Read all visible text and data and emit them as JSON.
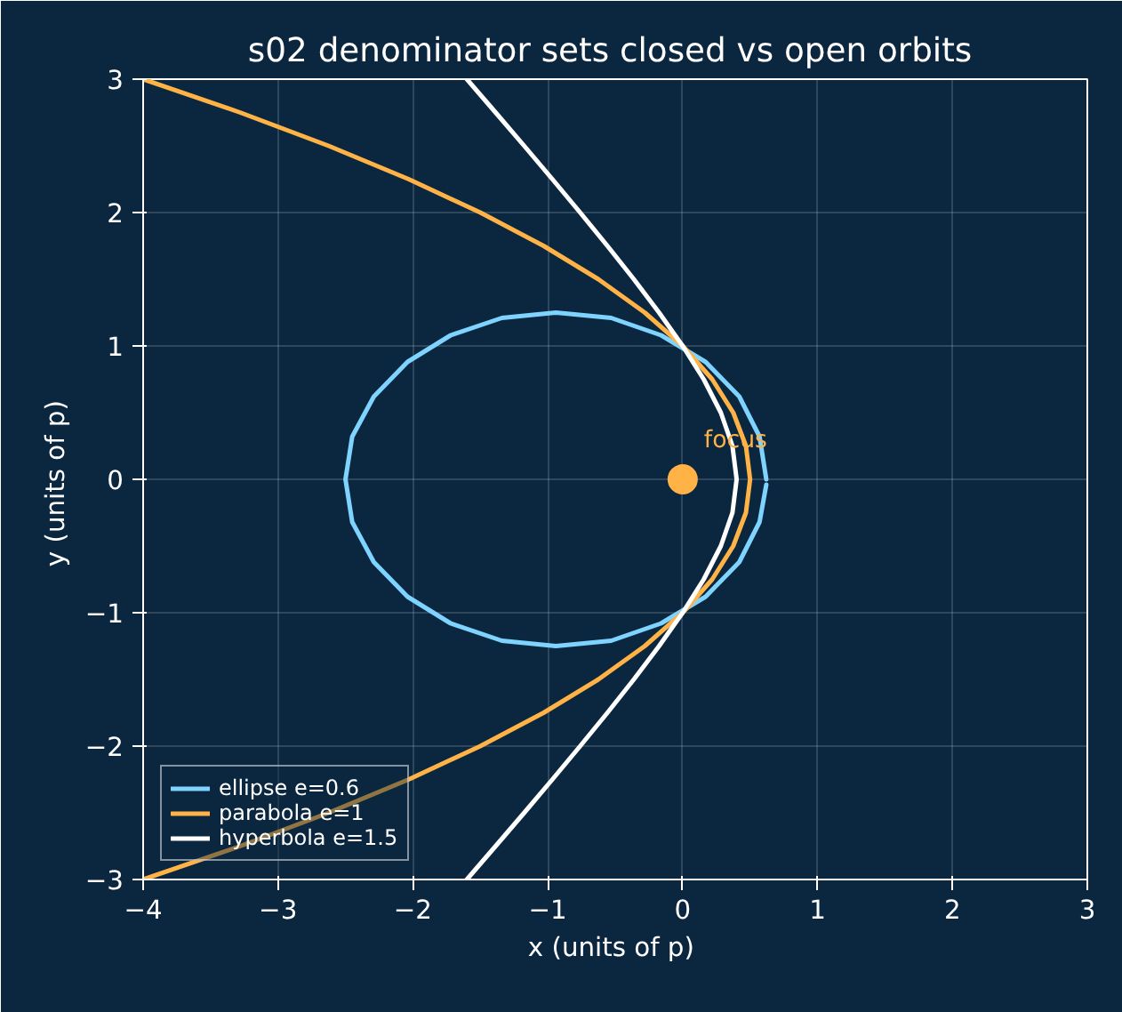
{
  "chart_data": {
    "type": "line",
    "title": "s02  denominator sets closed vs open orbits",
    "xlabel": "x  (units of p)",
    "ylabel": "y  (units of p)",
    "xlim": [
      -4,
      3
    ],
    "ylim": [
      -3,
      3
    ],
    "xticks": [
      -4,
      -3,
      -2,
      -1,
      0,
      1,
      2,
      3
    ],
    "yticks": [
      -3,
      -2,
      -1,
      0,
      1,
      2,
      3
    ],
    "grid": true,
    "legend": "bottom left",
    "line_style": "solid",
    "series": [
      {
        "name": "ellipse e=0.6",
        "color": "#7fd3ff",
        "x": [
          0.62,
          0.57,
          0.42,
          0.17,
          -0.16,
          -0.53,
          -0.94,
          -1.34,
          -1.72,
          -2.04,
          -2.29,
          -2.45,
          -2.5,
          -2.45,
          -2.29,
          -2.04,
          -1.72,
          -1.34,
          -0.94,
          -0.53,
          -0.16,
          0.17,
          0.42,
          0.57,
          0.62
        ],
        "values": [
          0,
          0.32,
          0.62,
          0.88,
          1.08,
          1.21,
          1.25,
          1.21,
          1.08,
          0.88,
          0.62,
          0.32,
          0,
          -0.32,
          -0.62,
          -0.88,
          -1.08,
          -1.21,
          -1.25,
          -1.21,
          -1.08,
          -0.88,
          -0.62,
          -0.32,
          -0.04
        ]
      },
      {
        "name": "parabola e=1",
        "color": "#ffb347",
        "x": [
          -4,
          -3.281,
          -2.625,
          -2.031,
          -1.5,
          -1.031,
          -0.625,
          -0.281,
          0,
          0.219,
          0.375,
          0.469,
          0.5,
          0.469,
          0.375,
          0.219,
          0,
          -0.281,
          -0.625,
          -1.031,
          -1.5,
          -2.031,
          -2.625,
          -3.281,
          -4
        ],
        "values": [
          -3,
          -2.75,
          -2.5,
          -2.25,
          -2,
          -1.75,
          -1.5,
          -1.25,
          -1,
          -0.75,
          -0.5,
          -0.25,
          0,
          0.25,
          0.5,
          0.75,
          1,
          1.25,
          1.5,
          1.75,
          2,
          2.25,
          2.5,
          2.75,
          3
        ]
      },
      {
        "name": "hyperbola e=1.5",
        "color": "#ffffff",
        "x": [
          -1.6,
          -1.387,
          -1.175,
          -0.966,
          -0.76,
          -0.558,
          -0.362,
          -0.175,
          0,
          0.156,
          0.283,
          0.369,
          0.4,
          0.369,
          0.283,
          0.156,
          0,
          -0.175,
          -0.362,
          -0.558,
          -0.76,
          -0.966,
          -1.175,
          -1.387,
          -1.6
        ],
        "values": [
          -3,
          -2.75,
          -2.5,
          -2.25,
          -2,
          -1.75,
          -1.5,
          -1.25,
          -1,
          -0.75,
          -0.5,
          -0.25,
          0,
          0.25,
          0.5,
          0.75,
          1,
          1.25,
          1.5,
          1.75,
          2,
          2.25,
          2.5,
          2.75,
          3
        ]
      },
      {
        "type": "scatter",
        "marker": "circle",
        "color": "#ffb347",
        "x": [
          0
        ],
        "values": [
          0
        ]
      }
    ],
    "annotations": [
      {
        "text": "focus",
        "x": 0,
        "y": 0
      }
    ]
  }
}
